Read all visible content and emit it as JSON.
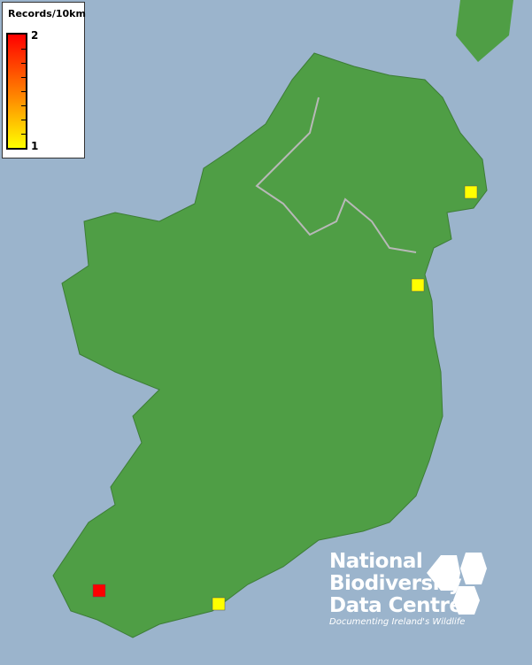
{
  "legend": {
    "title": "Records/10km",
    "max_label": "2",
    "min_label": "1",
    "max_color": "#ff0000",
    "min_color": "#ffff00"
  },
  "colors": {
    "sea": "#9bb4cc",
    "land": "#4f9e45",
    "border": "#b8b8b8"
  },
  "records": [
    {
      "value": 1,
      "color": "#ffff00"
    },
    {
      "value": 1,
      "color": "#ffff00"
    },
    {
      "value": 2,
      "color": "#ff0000"
    },
    {
      "value": 1,
      "color": "#ffff00"
    }
  ],
  "logo": {
    "line1": "National",
    "line2": "Biodiversity",
    "line3": "Data Centre",
    "tagline": "Documenting Ireland's Wildlife"
  }
}
